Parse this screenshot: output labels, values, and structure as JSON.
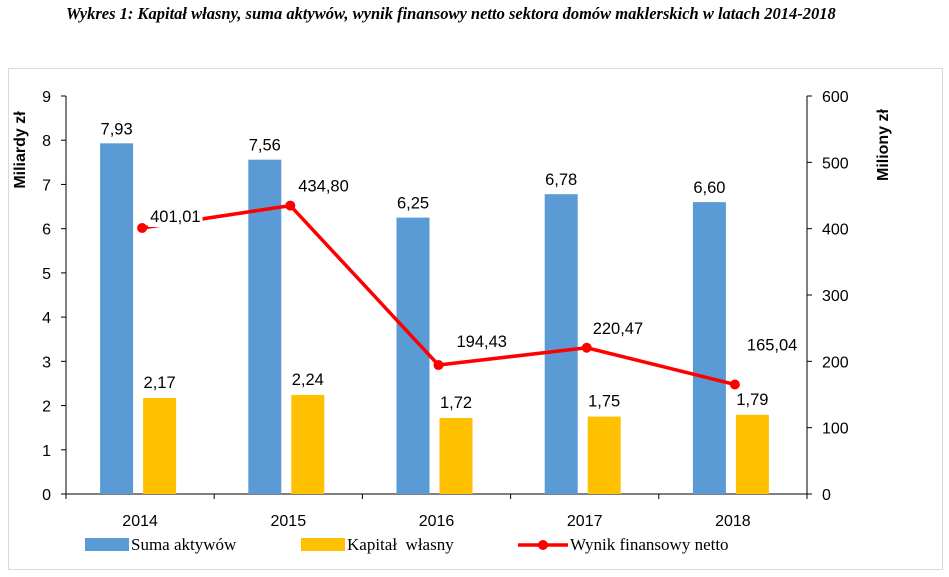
{
  "caption": "Wykres 1: Kapitał własny, suma aktywów, wynik finansowy netto sektora domów maklerskich w latach 2014-2018",
  "chart_data": {
    "type": "bar",
    "categories": [
      "2014",
      "2015",
      "2016",
      "2017",
      "2018"
    ],
    "series": [
      {
        "name": "Suma aktywów",
        "kind": "bar",
        "axis": "left",
        "color": "#5b9bd5",
        "values": [
          7.93,
          7.56,
          6.25,
          6.78,
          6.6
        ],
        "labels": [
          "7,93",
          "7,56",
          "6,25",
          "6,78",
          "6,60"
        ]
      },
      {
        "name": "Kapitał  własny",
        "kind": "bar",
        "axis": "left",
        "color": "#ffc000",
        "values": [
          2.17,
          2.24,
          1.72,
          1.75,
          1.79
        ],
        "labels": [
          "2,17",
          "2,24",
          "1,72",
          "1,75",
          "1,79"
        ]
      },
      {
        "name": "Wynik finansowy netto",
        "kind": "line",
        "axis": "right",
        "color": "#ff0000",
        "values": [
          401.01,
          434.8,
          194.43,
          220.47,
          165.04
        ],
        "labels": [
          "401,01",
          "434,80",
          "194,43",
          "220,47",
          "165,04"
        ]
      }
    ],
    "ylabel": "Miliardy zł",
    "y2label": "Miliony zł",
    "ylim": [
      0,
      9
    ],
    "y2lim": [
      0,
      600
    ],
    "yticks": [
      "0",
      "1",
      "2",
      "3",
      "4",
      "5",
      "6",
      "7",
      "8",
      "9"
    ],
    "y2ticks": [
      "0",
      "100",
      "200",
      "300",
      "400",
      "500",
      "600"
    ],
    "grid": false,
    "legend_position": "bottom"
  }
}
